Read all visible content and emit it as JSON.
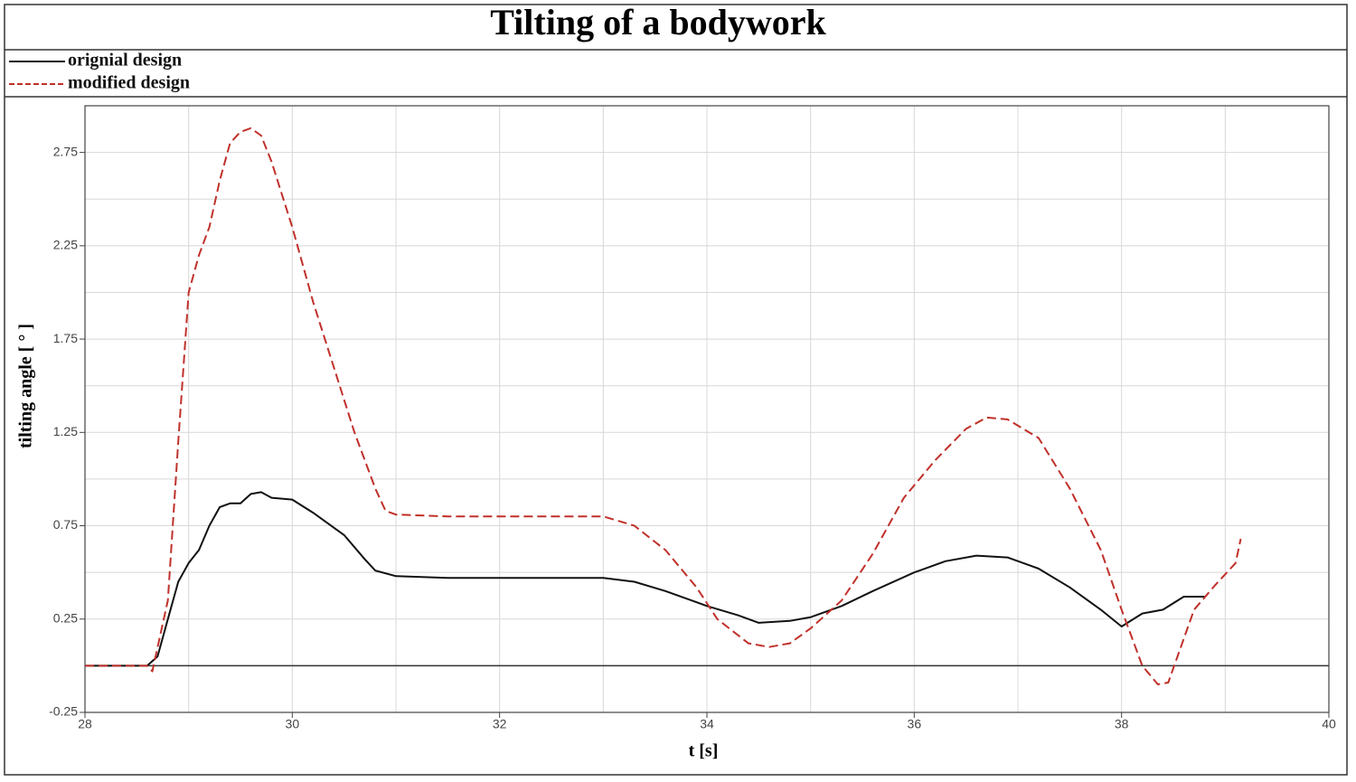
{
  "chart_data": {
    "type": "line",
    "title": "Tilting of a bodywork",
    "xlabel": "t [s]",
    "ylabel": "tilting angle [ ° ]",
    "xlim": [
      28,
      40
    ],
    "ylim": [
      -0.25,
      3.0
    ],
    "xticks": [
      28,
      30,
      32,
      34,
      36,
      38,
      40
    ],
    "yticks": [
      -0.25,
      0.25,
      0.75,
      1.25,
      1.75,
      2.25,
      2.75
    ],
    "minor_xgrid": [
      29,
      31,
      33,
      35,
      37,
      39
    ],
    "minor_ygrid": [
      0,
      0.5,
      1,
      1.5,
      2,
      2.5,
      3
    ],
    "zero_line": 0,
    "grid": true,
    "legend": "top-left",
    "series": [
      {
        "name": "orignial design",
        "color": "#111111",
        "style": "solid",
        "x": [
          28.0,
          28.6,
          28.7,
          28.8,
          28.9,
          29.0,
          29.1,
          29.2,
          29.3,
          29.4,
          29.5,
          29.6,
          29.7,
          29.8,
          30.0,
          30.2,
          30.5,
          30.7,
          30.8,
          31.0,
          31.5,
          32.0,
          33.0,
          33.3,
          33.6,
          34.0,
          34.3,
          34.5,
          34.8,
          35.0,
          35.3,
          35.6,
          36.0,
          36.3,
          36.6,
          36.9,
          37.2,
          37.5,
          37.8,
          38.0,
          38.2,
          38.4,
          38.6,
          38.8
        ],
        "values": [
          0,
          0,
          0.05,
          0.25,
          0.45,
          0.55,
          0.62,
          0.75,
          0.85,
          0.87,
          0.87,
          0.92,
          0.93,
          0.9,
          0.89,
          0.82,
          0.7,
          0.57,
          0.51,
          0.48,
          0.47,
          0.47,
          0.47,
          0.45,
          0.4,
          0.32,
          0.27,
          0.23,
          0.24,
          0.26,
          0.32,
          0.4,
          0.5,
          0.56,
          0.59,
          0.58,
          0.52,
          0.42,
          0.3,
          0.21,
          0.28,
          0.3,
          0.37,
          0.37
        ]
      },
      {
        "name": "modified design",
        "color": "#c0302a",
        "style": "dashed",
        "x": [
          28.0,
          28.6,
          28.65,
          28.8,
          28.9,
          29.0,
          29.1,
          29.2,
          29.3,
          29.4,
          29.5,
          29.6,
          29.7,
          29.8,
          30.0,
          30.2,
          30.4,
          30.6,
          30.8,
          30.9,
          31.0,
          31.5,
          32.0,
          33.0,
          33.3,
          33.6,
          33.9,
          34.1,
          34.4,
          34.6,
          34.8,
          35.0,
          35.3,
          35.6,
          35.9,
          36.2,
          36.5,
          36.7,
          36.9,
          37.2,
          37.5,
          37.8,
          38.0,
          38.2,
          38.35,
          38.45,
          38.7,
          38.9,
          39.1,
          39.15
        ],
        "values": [
          0,
          0,
          -0.03,
          0.35,
          1.2,
          2.0,
          2.2,
          2.35,
          2.6,
          2.8,
          2.86,
          2.88,
          2.84,
          2.7,
          2.35,
          1.95,
          1.6,
          1.25,
          0.95,
          0.83,
          0.81,
          0.8,
          0.8,
          0.8,
          0.75,
          0.62,
          0.42,
          0.25,
          0.12,
          0.1,
          0.12,
          0.2,
          0.35,
          0.6,
          0.9,
          1.1,
          1.27,
          1.33,
          1.32,
          1.22,
          0.95,
          0.62,
          0.3,
          0.0,
          -0.1,
          -0.09,
          0.3,
          0.43,
          0.55,
          0.68
        ]
      }
    ]
  }
}
